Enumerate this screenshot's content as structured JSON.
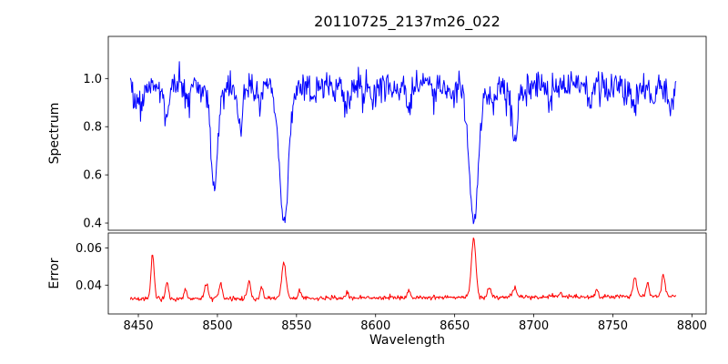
{
  "chart_data": {
    "type": "line",
    "title": "20110725_2137m26_022",
    "xlabel": "Wavelength",
    "xlim": [
      8431,
      8809
    ],
    "xticks": [
      8450,
      8500,
      8550,
      8600,
      8650,
      8700,
      8750,
      8800
    ],
    "x_range_data": [
      8445,
      8790
    ],
    "n_points": 760,
    "grid": false,
    "legend": "none",
    "panels": [
      {
        "name": "spectrum",
        "ylabel": "Spectrum",
        "color": "#0000ff",
        "ylim": [
          0.37,
          1.175
        ],
        "yticks": [
          0.4,
          0.6,
          0.8,
          1.0
        ],
        "ytick_labels": [
          "0.4",
          "0.6",
          "0.8",
          "1.0"
        ],
        "baseline": 0.97,
        "noise_std": 0.034,
        "absorption_lines": [
          {
            "center": 8448,
            "depth": 0.08,
            "sigma": 1.2
          },
          {
            "center": 8452,
            "depth": 0.1,
            "sigma": 1.4
          },
          {
            "center": 8468,
            "depth": 0.16,
            "sigma": 1.6
          },
          {
            "center": 8482,
            "depth": 0.07,
            "sigma": 1.2
          },
          {
            "center": 8498,
            "depth": 0.42,
            "sigma": 2.3
          },
          {
            "center": 8514,
            "depth": 0.17,
            "sigma": 1.5
          },
          {
            "center": 8527,
            "depth": 0.08,
            "sigma": 1.2
          },
          {
            "center": 8542,
            "depth": 0.58,
            "sigma": 2.9
          },
          {
            "center": 8560,
            "depth": 0.06,
            "sigma": 1.1
          },
          {
            "center": 8582,
            "depth": 0.09,
            "sigma": 1.4
          },
          {
            "center": 8598,
            "depth": 0.07,
            "sigma": 1.2
          },
          {
            "center": 8611,
            "depth": 0.06,
            "sigma": 1.1
          },
          {
            "center": 8621,
            "depth": 0.09,
            "sigma": 1.3
          },
          {
            "center": 8648,
            "depth": 0.07,
            "sigma": 1.2
          },
          {
            "center": 8662,
            "depth": 0.575,
            "sigma": 2.9
          },
          {
            "center": 8674,
            "depth": 0.09,
            "sigma": 1.2
          },
          {
            "center": 8688,
            "depth": 0.23,
            "sigma": 1.8
          },
          {
            "center": 8710,
            "depth": 0.07,
            "sigma": 1.2
          },
          {
            "center": 8736,
            "depth": 0.09,
            "sigma": 1.3
          },
          {
            "center": 8747,
            "depth": 0.07,
            "sigma": 1.1
          },
          {
            "center": 8757,
            "depth": 0.06,
            "sigma": 1.1
          },
          {
            "center": 8764,
            "depth": 0.09,
            "sigma": 1.2
          },
          {
            "center": 8776,
            "depth": 0.08,
            "sigma": 1.2
          },
          {
            "center": 8786,
            "depth": 0.11,
            "sigma": 1.3
          }
        ]
      },
      {
        "name": "error",
        "ylabel": "Error",
        "color": "#ff0000",
        "ylim": [
          0.0245,
          0.068
        ],
        "yticks": [
          0.04,
          0.06
        ],
        "ytick_labels": [
          "0.04",
          "0.06"
        ],
        "baseline": 0.0325,
        "slope": 4.5e-06,
        "noise_std": 0.0006,
        "emission_spikes": [
          {
            "center": 8459,
            "amp": 0.0245,
            "sigma": 1.0
          },
          {
            "center": 8468,
            "amp": 0.009,
            "sigma": 1.0
          },
          {
            "center": 8480,
            "amp": 0.005,
            "sigma": 0.9
          },
          {
            "center": 8493,
            "amp": 0.0085,
            "sigma": 1.1
          },
          {
            "center": 8502,
            "amp": 0.008,
            "sigma": 1.0
          },
          {
            "center": 8520,
            "amp": 0.009,
            "sigma": 1.0
          },
          {
            "center": 8528,
            "amp": 0.006,
            "sigma": 0.9
          },
          {
            "center": 8542,
            "amp": 0.019,
            "sigma": 1.4
          },
          {
            "center": 8552,
            "amp": 0.004,
            "sigma": 0.9
          },
          {
            "center": 8582,
            "amp": 0.003,
            "sigma": 0.9
          },
          {
            "center": 8621,
            "amp": 0.003,
            "sigma": 0.9
          },
          {
            "center": 8662,
            "amp": 0.0315,
            "sigma": 1.4
          },
          {
            "center": 8672,
            "amp": 0.005,
            "sigma": 1.0
          },
          {
            "center": 8688,
            "amp": 0.0055,
            "sigma": 1.1
          },
          {
            "center": 8717,
            "amp": 0.003,
            "sigma": 0.9
          },
          {
            "center": 8740,
            "amp": 0.0035,
            "sigma": 0.9
          },
          {
            "center": 8764,
            "amp": 0.0105,
            "sigma": 1.1
          },
          {
            "center": 8772,
            "amp": 0.007,
            "sigma": 1.0
          },
          {
            "center": 8782,
            "amp": 0.0115,
            "sigma": 1.1
          }
        ]
      }
    ]
  }
}
